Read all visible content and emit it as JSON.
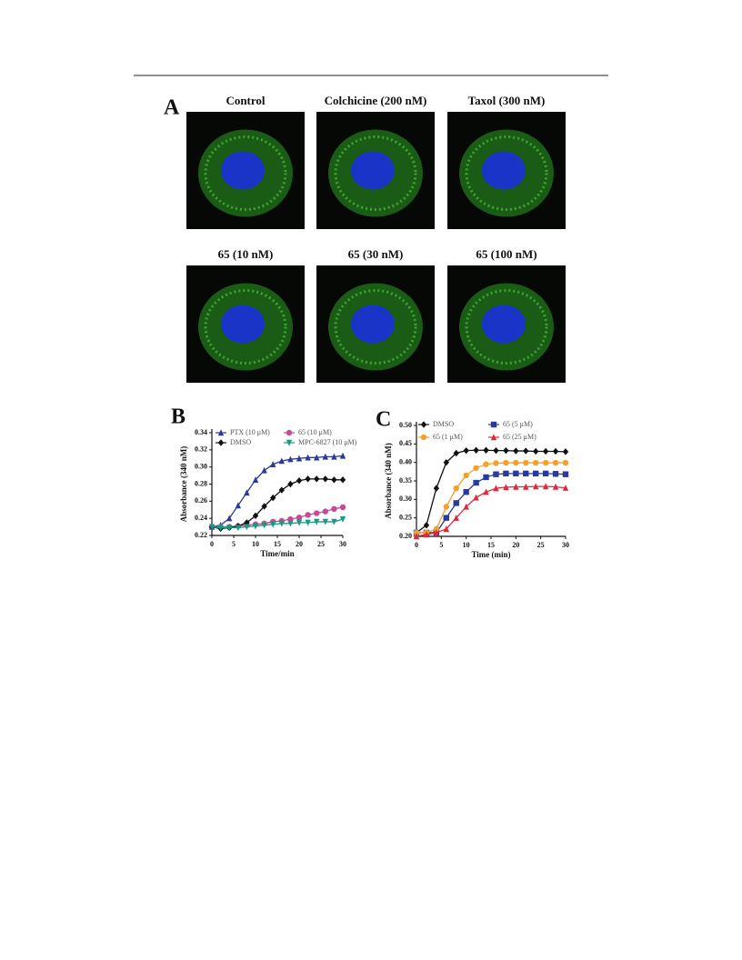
{
  "figure_a": {
    "label": "A",
    "titles": [
      "Control",
      "Colchicine (200 nM)",
      "Taxol (300 nM)",
      "65 (10 nM)",
      "65 (30 nM)",
      "65 (100 nM)"
    ]
  },
  "chart_data": [
    {
      "type": "line",
      "panel": "B",
      "xlabel": "Time/min",
      "ylabel": "Absorbance (340 nM)",
      "x": [
        0,
        2,
        4,
        6,
        8,
        10,
        12,
        14,
        16,
        18,
        20,
        22,
        24,
        26,
        28,
        30
      ],
      "xlim": [
        0,
        30
      ],
      "xticks": [
        0,
        5,
        10,
        15,
        20,
        25,
        30
      ],
      "ylim": [
        0.22,
        0.34
      ],
      "yticks": [
        0.22,
        0.24,
        0.26,
        0.28,
        {
          "value": 0.3,
          "label": "0.30"
        },
        0.32,
        0.34
      ],
      "series": [
        {
          "name": "PTX (10 μM)",
          "color": "#2b3a9a",
          "marker": "triangle",
          "values": [
            0.23,
            0.232,
            0.24,
            0.255,
            0.27,
            0.285,
            0.296,
            0.303,
            0.307,
            0.309,
            0.31,
            0.311,
            0.311,
            0.312,
            0.312,
            0.313
          ]
        },
        {
          "name": "65 (10 μM)",
          "color": "#c8489a",
          "marker": "circle",
          "values": [
            0.23,
            0.23,
            0.23,
            0.231,
            0.232,
            0.233,
            0.234,
            0.236,
            0.237,
            0.239,
            0.241,
            0.244,
            0.246,
            0.248,
            0.251,
            0.253
          ]
        },
        {
          "name": "DMSO",
          "color": "#111111",
          "marker": "diamond",
          "values": [
            0.23,
            0.228,
            0.229,
            0.231,
            0.235,
            0.243,
            0.254,
            0.264,
            0.273,
            0.28,
            0.284,
            0.286,
            0.286,
            0.286,
            0.285,
            0.285
          ]
        },
        {
          "name": "MPC-6827 (10 μM)",
          "color": "#1a9a82",
          "marker": "triangle-down",
          "values": [
            0.23,
            0.229,
            0.229,
            0.229,
            0.23,
            0.231,
            0.232,
            0.233,
            0.234,
            0.234,
            0.235,
            0.235,
            0.236,
            0.236,
            0.236,
            0.239
          ]
        }
      ]
    },
    {
      "type": "line",
      "panel": "C",
      "xlabel": "Time (min)",
      "ylabel": "Absorbance (340 nM)",
      "x": [
        0,
        2,
        4,
        6,
        8,
        10,
        12,
        14,
        16,
        18,
        20,
        22,
        24,
        26,
        28,
        30
      ],
      "xlim": [
        0,
        30
      ],
      "xticks": [
        0,
        5,
        10,
        15,
        20,
        25,
        30
      ],
      "ylim": [
        0.2,
        0.5
      ],
      "yticks": [
        {
          "value": 0.2,
          "label": "0.20"
        },
        0.25,
        {
          "value": 0.3,
          "label": "0.30"
        },
        0.35,
        {
          "value": 0.4,
          "label": "0.40"
        },
        0.45,
        {
          "value": 0.5,
          "label": "0.50"
        }
      ],
      "series": [
        {
          "name": "DMSO",
          "color": "#111111",
          "marker": "diamond",
          "values": [
            0.21,
            0.23,
            0.33,
            0.4,
            0.425,
            0.432,
            0.433,
            0.433,
            0.432,
            0.432,
            0.431,
            0.431,
            0.43,
            0.43,
            0.43,
            0.429
          ]
        },
        {
          "name": "65 (5 μM)",
          "color": "#2a3a9c",
          "marker": "square",
          "values": [
            0.21,
            0.21,
            0.21,
            0.25,
            0.29,
            0.32,
            0.345,
            0.36,
            0.368,
            0.37,
            0.37,
            0.37,
            0.37,
            0.37,
            0.369,
            0.368
          ]
        },
        {
          "name": "65 (1 μM)",
          "color": "#f2a12e",
          "marker": "circle",
          "values": [
            0.21,
            0.21,
            0.22,
            0.28,
            0.33,
            0.365,
            0.385,
            0.395,
            0.398,
            0.399,
            0.399,
            0.399,
            0.399,
            0.399,
            0.399,
            0.399
          ]
        },
        {
          "name": "65 (25 μM)",
          "color": "#e0283a",
          "marker": "triangle",
          "values": [
            0.2,
            0.205,
            0.21,
            0.22,
            0.25,
            0.28,
            0.305,
            0.32,
            0.33,
            0.333,
            0.334,
            0.334,
            0.335,
            0.335,
            0.334,
            0.331
          ]
        }
      ]
    }
  ]
}
